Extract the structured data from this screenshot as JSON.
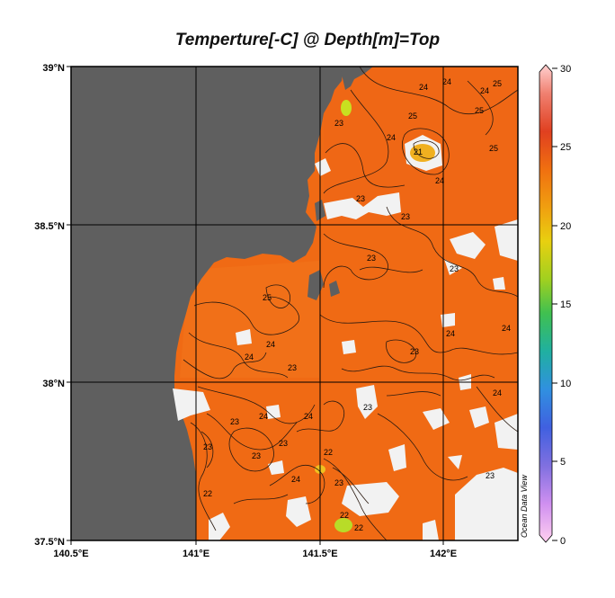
{
  "title": "Temperture[-C] @ Depth[m]=Top",
  "watermark": "Ocean Data View",
  "axes": {
    "lat_ticks": [
      "39°N",
      "38.5°N",
      "38°N",
      "37.5°N"
    ],
    "lon_ticks": [
      "140.5°E",
      "141°E",
      "141.5°E",
      "142°E"
    ]
  },
  "colorbar": {
    "ticks": [
      "30",
      "25",
      "20",
      "15",
      "10",
      "5",
      "0"
    ],
    "colors": [
      "#ffc0e0",
      "#e090f0",
      "#8060e0",
      "#3070e0",
      "#20a0c0",
      "#20c070",
      "#80d020",
      "#e0e010",
      "#f0b010",
      "#f07010",
      "#e04020",
      "#f08070",
      "#ffd0d0"
    ]
  },
  "contour_labels": [
    "24",
    "24",
    "24",
    "25",
    "25",
    "25",
    "25",
    "23",
    "24",
    "21",
    "24",
    "23",
    "23",
    "23",
    "23",
    "23",
    "24",
    "24",
    "25",
    "24",
    "24",
    "23",
    "23",
    "24",
    "24",
    "23",
    "23",
    "22",
    "23",
    "24",
    "23",
    "23",
    "22",
    "23",
    "24",
    "22",
    "22"
  ],
  "colors": {
    "land": "#5f5f5f",
    "sea": "#f06a14",
    "nodata": "#f2f2f2"
  }
}
